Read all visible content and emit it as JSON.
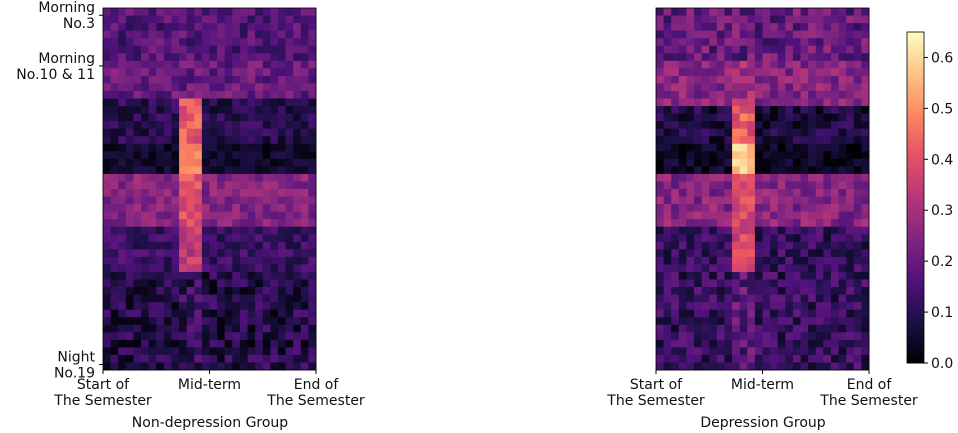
{
  "chart_data": [
    {
      "type": "heatmap",
      "xlabel": "Non-depression Group",
      "x_ticks": [
        {
          "pos": 0.0,
          "lines": [
            "Start of",
            "The Semester"
          ]
        },
        {
          "pos": 0.5,
          "lines": [
            "Mid-term"
          ]
        },
        {
          "pos": 1.0,
          "lines": [
            "End of",
            "The Semester"
          ]
        }
      ],
      "y_ticks": [
        {
          "pos": 0.02,
          "lines": [
            "Morning",
            "No.3"
          ]
        },
        {
          "pos": 0.16,
          "lines": [
            "Morning",
            "No.10 & 11"
          ]
        },
        {
          "pos": 0.985,
          "lines": [
            "Night",
            "No.19"
          ]
        }
      ],
      "n_cols": 28,
      "n_rows": 48,
      "clim": [
        0,
        0.65
      ],
      "colormap": "magma",
      "bands": [
        {
          "rows": [
            0,
            7
          ],
          "base": 0.17,
          "mid": 0.17,
          "var": 0.07
        },
        {
          "rows": [
            7,
            12
          ],
          "base": 0.2,
          "mid": 0.2,
          "var": 0.07
        },
        {
          "rows": [
            12,
            18
          ],
          "base": 0.1,
          "mid": 0.42,
          "var": 0.06
        },
        {
          "rows": [
            18,
            22
          ],
          "base": 0.05,
          "mid": 0.48,
          "var": 0.04
        },
        {
          "rows": [
            22,
            29
          ],
          "base": 0.25,
          "mid": 0.4,
          "var": 0.06
        },
        {
          "rows": [
            29,
            35
          ],
          "base": 0.13,
          "mid": 0.34,
          "var": 0.06
        },
        {
          "rows": [
            35,
            48
          ],
          "base": 0.09,
          "mid": 0.12,
          "var": 0.08
        }
      ]
    },
    {
      "type": "heatmap",
      "xlabel": "Depression Group",
      "x_ticks": [
        {
          "pos": 0.0,
          "lines": [
            "Start of",
            "The Semester"
          ]
        },
        {
          "pos": 0.5,
          "lines": [
            "Mid-term"
          ]
        },
        {
          "pos": 1.0,
          "lines": [
            "End of",
            "The Semester"
          ]
        }
      ],
      "y_ticks": [],
      "n_cols": 28,
      "n_rows": 48,
      "clim": [
        0,
        0.65
      ],
      "colormap": "magma",
      "bands": [
        {
          "rows": [
            0,
            7
          ],
          "base": 0.2,
          "mid": 0.2,
          "var": 0.09
        },
        {
          "rows": [
            7,
            13
          ],
          "base": 0.25,
          "mid": 0.3,
          "var": 0.07
        },
        {
          "rows": [
            13,
            18
          ],
          "base": 0.08,
          "mid": 0.42,
          "var": 0.07
        },
        {
          "rows": [
            18,
            22
          ],
          "base": 0.04,
          "mid": 0.58,
          "var": 0.05
        },
        {
          "rows": [
            22,
            29
          ],
          "base": 0.25,
          "mid": 0.4,
          "var": 0.07
        },
        {
          "rows": [
            29,
            35
          ],
          "base": 0.12,
          "mid": 0.38,
          "var": 0.07
        },
        {
          "rows": [
            35,
            48
          ],
          "base": 0.12,
          "mid": 0.18,
          "var": 0.08
        }
      ]
    }
  ],
  "colorbar": {
    "ticks": [
      "0.0",
      "0.1",
      "0.2",
      "0.3",
      "0.4",
      "0.5",
      "0.6"
    ],
    "range": [
      0,
      0.65
    ],
    "colormap": "magma"
  }
}
